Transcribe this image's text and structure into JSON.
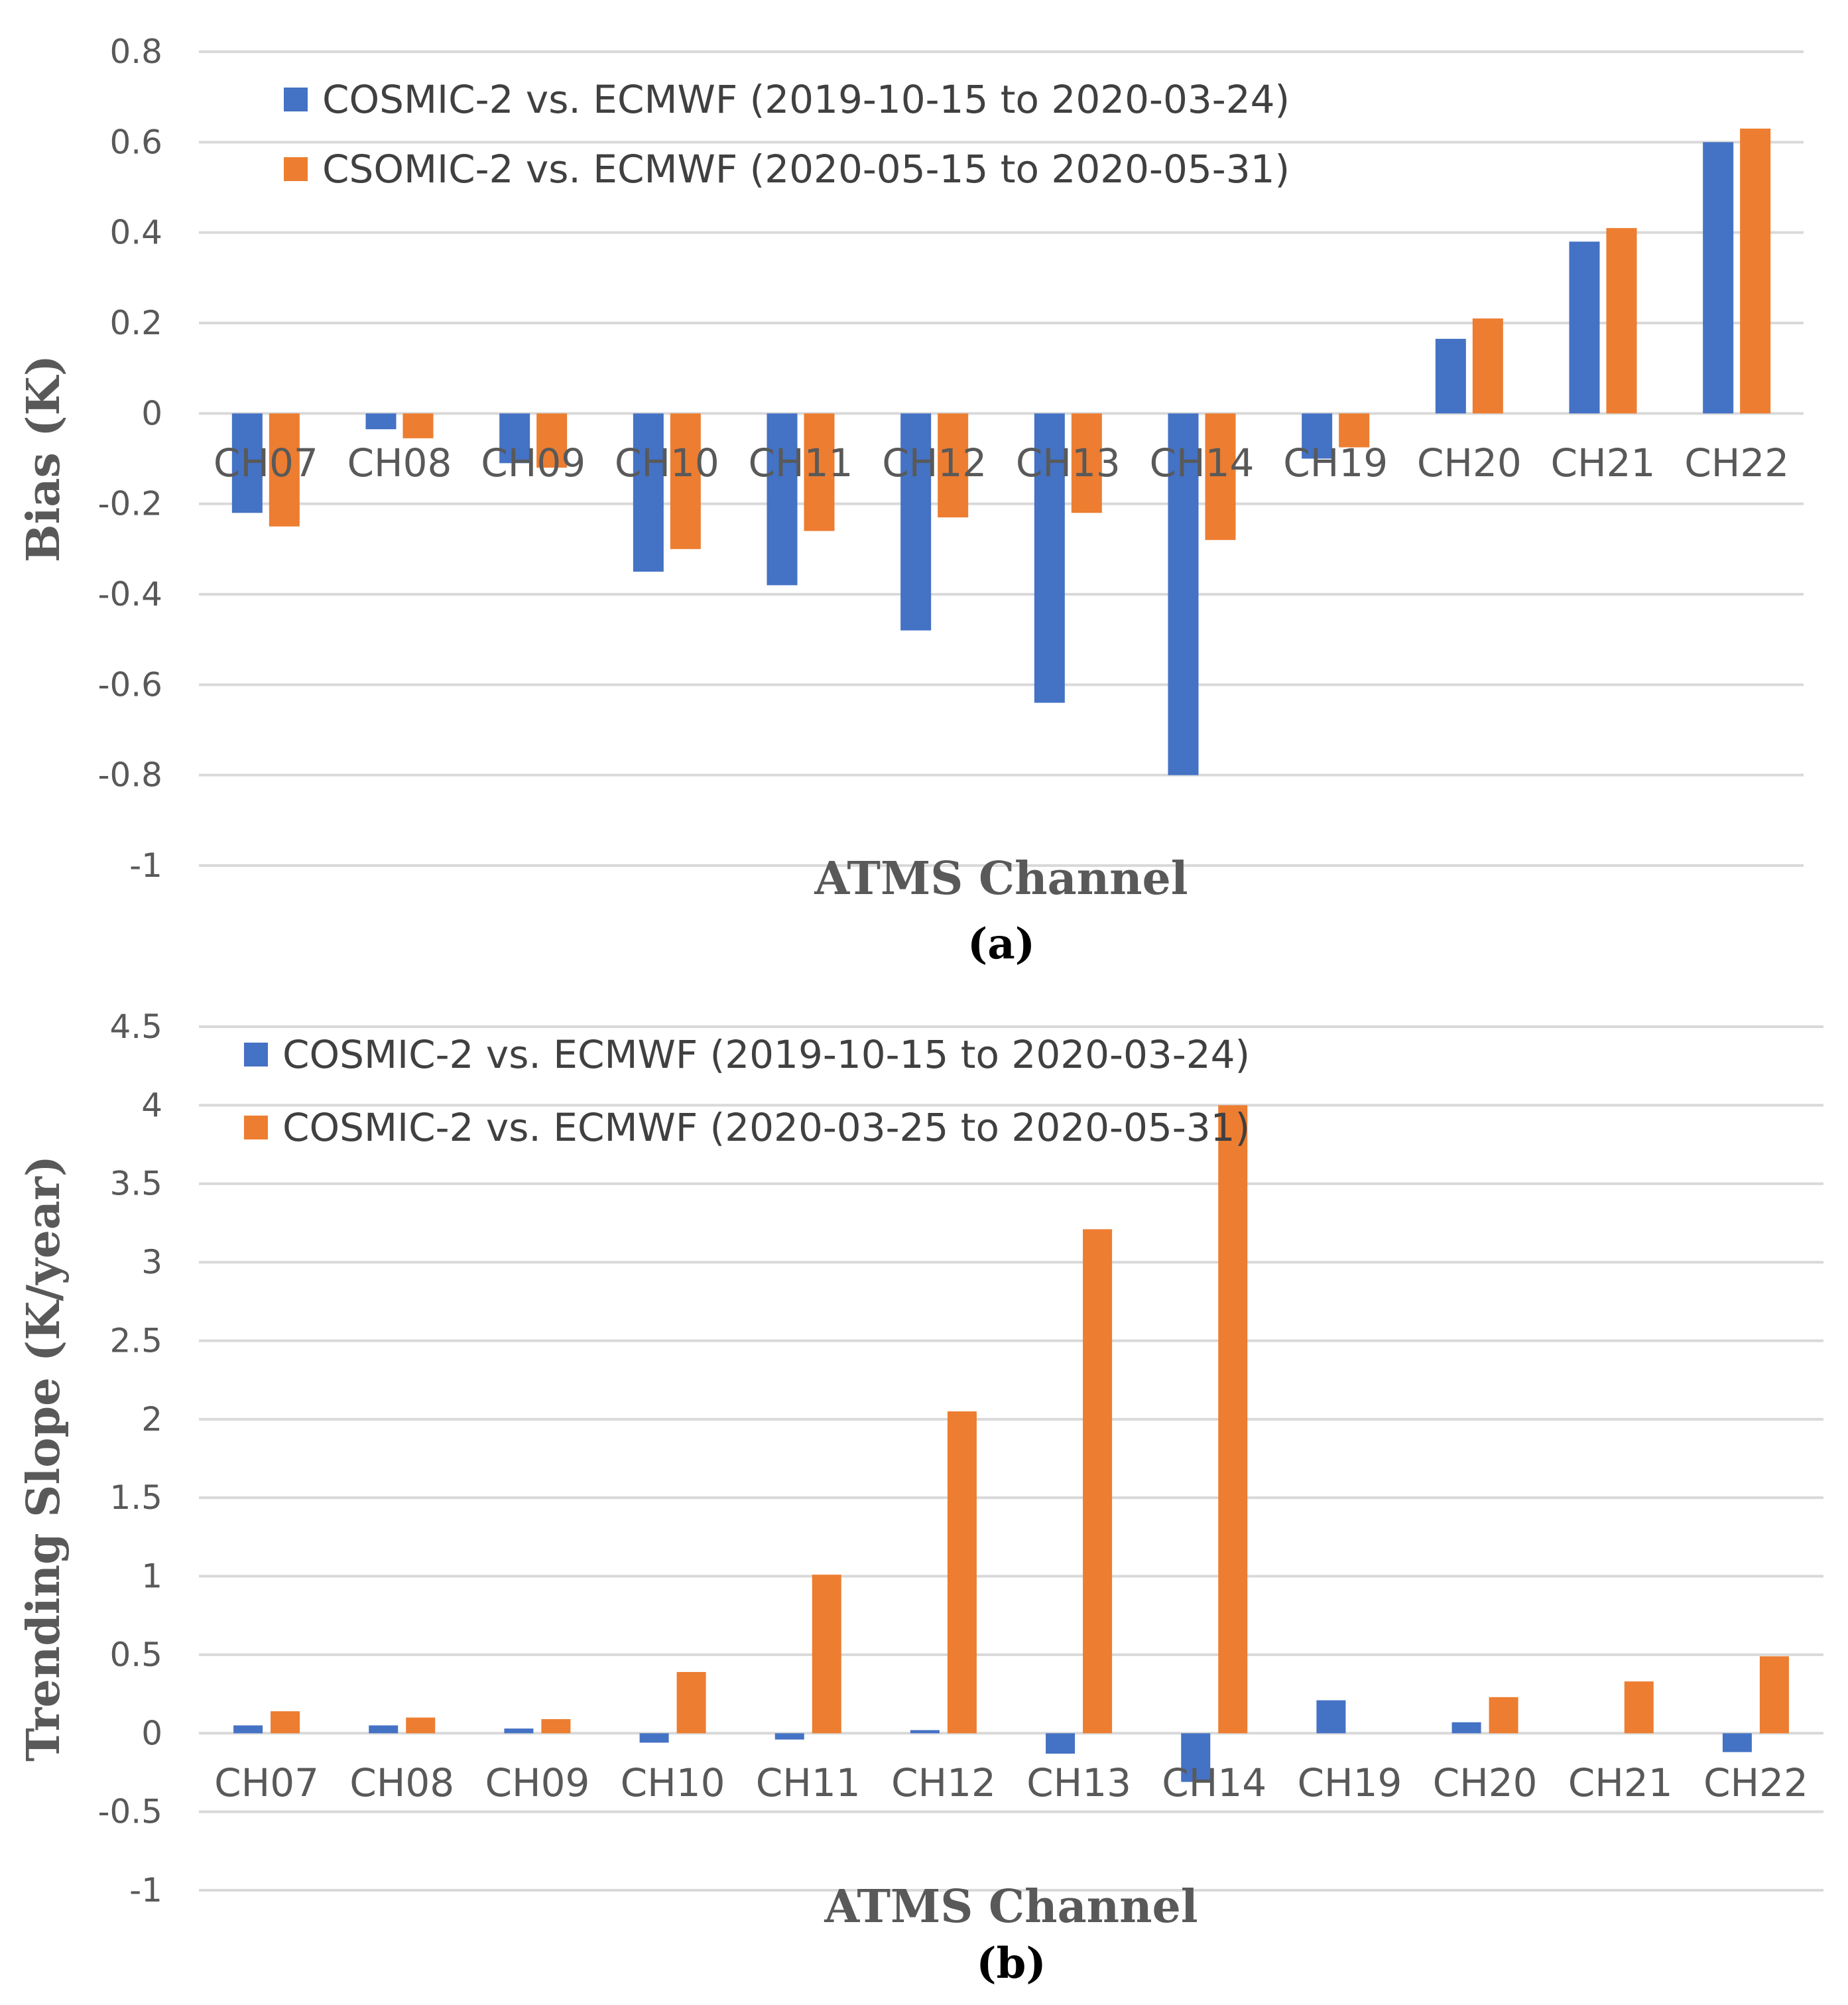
{
  "chart_data": [
    {
      "type": "bar",
      "panel_label": "(a)",
      "xlabel": "ATMS Channel",
      "ylabel": "Bias (K)",
      "ylim": [
        -1,
        0.8
      ],
      "yticks": [
        0.8,
        0.6,
        0.4,
        0.2,
        0,
        -0.2,
        -0.4,
        -0.6,
        -0.8,
        -1
      ],
      "grid": true,
      "legend_position": "top-left",
      "categories": [
        "CH07",
        "CH08",
        "CH09",
        "CH10",
        "CH11",
        "CH12",
        "CH13",
        "CH14",
        "CH19",
        "CH20",
        "CH21",
        "CH22"
      ],
      "series": [
        {
          "name": "COSMIC-2 vs. ECMWF (2019-10-15 to 2020-03-24)",
          "color": "#4472c4",
          "values": [
            -0.22,
            -0.035,
            -0.11,
            -0.35,
            -0.38,
            -0.48,
            -0.64,
            -0.8,
            -0.1,
            0.165,
            0.38,
            0.6
          ]
        },
        {
          "name": "CSOMIC-2 vs. ECMWF (2020-05-15 to 2020-05-31)",
          "color": "#ed7d31",
          "values": [
            -0.25,
            -0.055,
            -0.12,
            -0.3,
            -0.26,
            -0.23,
            -0.22,
            -0.28,
            -0.075,
            0.21,
            0.41,
            0.63
          ]
        }
      ]
    },
    {
      "type": "bar",
      "panel_label": "(b)",
      "xlabel": "ATMS Channel",
      "ylabel": "Trending Slope (K/year)",
      "ylim": [
        -1,
        4.5
      ],
      "yticks": [
        4.5,
        4,
        3.5,
        3,
        2.5,
        2,
        1.5,
        1,
        0.5,
        0,
        -0.5,
        -1
      ],
      "grid": true,
      "legend_position": "top-left",
      "categories": [
        "CH07",
        "CH08",
        "CH09",
        "CH10",
        "CH11",
        "CH12",
        "CH13",
        "CH14",
        "CH19",
        "CH20",
        "CH21",
        "CH22"
      ],
      "series": [
        {
          "name": "COSMIC-2 vs. ECMWF (2019-10-15 to 2020-03-24)",
          "color": "#4472c4",
          "values": [
            0.05,
            0.05,
            0.03,
            -0.06,
            -0.04,
            0.02,
            -0.13,
            -0.31,
            0.21,
            0.07,
            0.0,
            -0.12
          ]
        },
        {
          "name": "COSMIC-2 vs. ECMWF (2020-03-25 to 2020-05-31)",
          "color": "#ed7d31",
          "values": [
            0.14,
            0.1,
            0.09,
            0.39,
            1.01,
            2.05,
            3.21,
            4.0,
            0.0,
            0.23,
            0.33,
            0.49
          ]
        }
      ]
    }
  ]
}
